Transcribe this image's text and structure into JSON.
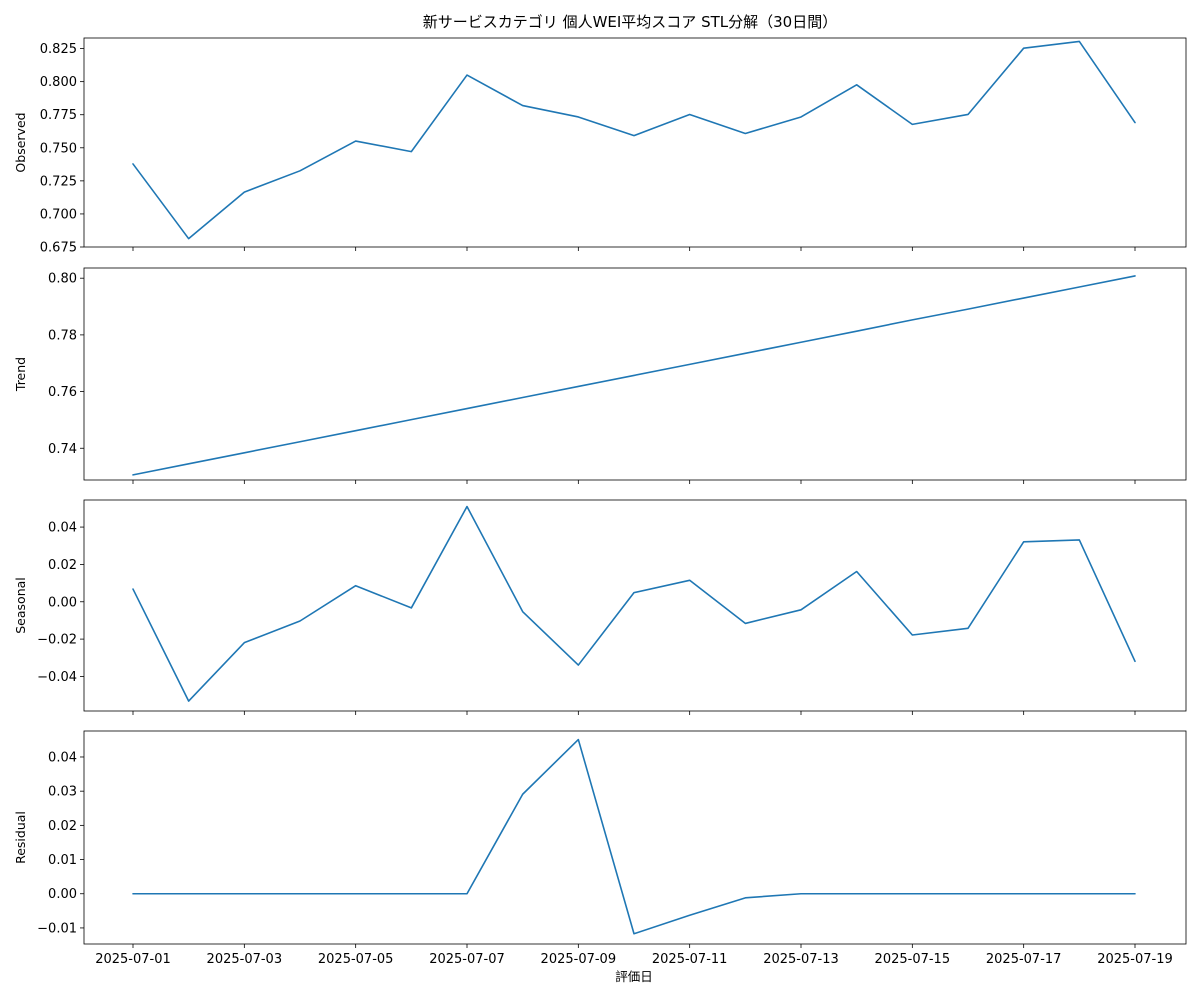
{
  "chart_data": {
    "type": "line",
    "title": "新サービスカテゴリ 個人WEI平均スコア STL分解（30日間）",
    "xlabel": "評価日",
    "x": [
      "2025-07-01",
      "2025-07-02",
      "2025-07-03",
      "2025-07-04",
      "2025-07-05",
      "2025-07-06",
      "2025-07-07",
      "2025-07-08",
      "2025-07-09",
      "2025-07-10",
      "2025-07-11",
      "2025-07-12",
      "2025-07-13",
      "2025-07-14",
      "2025-07-15",
      "2025-07-16",
      "2025-07-17",
      "2025-07-18",
      "2025-07-19"
    ],
    "x_tick_labels": [
      "2025-07-01",
      "2025-07-03",
      "2025-07-05",
      "2025-07-07",
      "2025-07-09",
      "2025-07-11",
      "2025-07-13",
      "2025-07-15",
      "2025-07-17",
      "2025-07-19"
    ],
    "line_color": "#1f77b4",
    "grid": false,
    "panels": [
      {
        "ylabel": "Observed",
        "ylim": [
          0.675,
          0.833
        ],
        "yticks": [
          "0.675",
          "0.700",
          "0.725",
          "0.750",
          "0.775",
          "0.800",
          "0.825"
        ],
        "values": [
          0.7378,
          0.6813,
          0.7165,
          0.7326,
          0.7551,
          0.7471,
          0.805,
          0.7819,
          0.7733,
          0.7592,
          0.7752,
          0.7608,
          0.7733,
          0.7976,
          0.7677,
          0.7752,
          0.8253,
          0.8304,
          0.7691
        ]
      },
      {
        "ylabel": "Trend",
        "ylim": [
          0.7288,
          0.8036
        ],
        "yticks": [
          "0.74",
          "0.76",
          "0.78",
          "0.80"
        ],
        "values": [
          0.7306,
          0.7345,
          0.7384,
          0.7423,
          0.7462,
          0.7501,
          0.754,
          0.7579,
          0.7618,
          0.7657,
          0.7696,
          0.7735,
          0.7774,
          0.7813,
          0.7853,
          0.7891,
          0.793,
          0.7969,
          0.8008
        ]
      },
      {
        "ylabel": "Seasonal",
        "ylim": [
          -0.0585,
          0.0545
        ],
        "yticks": [
          "−0.04",
          "−0.02",
          "0.00",
          "0.02",
          "0.04"
        ],
        "values": [
          0.0068,
          -0.0532,
          -0.0219,
          -0.0103,
          0.0086,
          -0.0033,
          0.051,
          -0.0053,
          -0.0339,
          0.0049,
          0.0115,
          -0.0116,
          -0.0043,
          0.0162,
          -0.0178,
          -0.0142,
          0.0321,
          0.0331,
          -0.0319
        ]
      },
      {
        "ylabel": "Residual",
        "ylim": [
          -0.0147,
          0.0476
        ],
        "yticks": [
          "−0.01",
          "0.00",
          "0.01",
          "0.02",
          "0.03",
          "0.04"
        ],
        "values": [
          0.0,
          0.0,
          0.0,
          0.0,
          0.0,
          0.0,
          0.0,
          0.0291,
          0.0451,
          -0.0117,
          -0.0063,
          -0.0012,
          0.0,
          0.0,
          0.0,
          0.0,
          0.0,
          0.0,
          0.0
        ]
      }
    ]
  }
}
